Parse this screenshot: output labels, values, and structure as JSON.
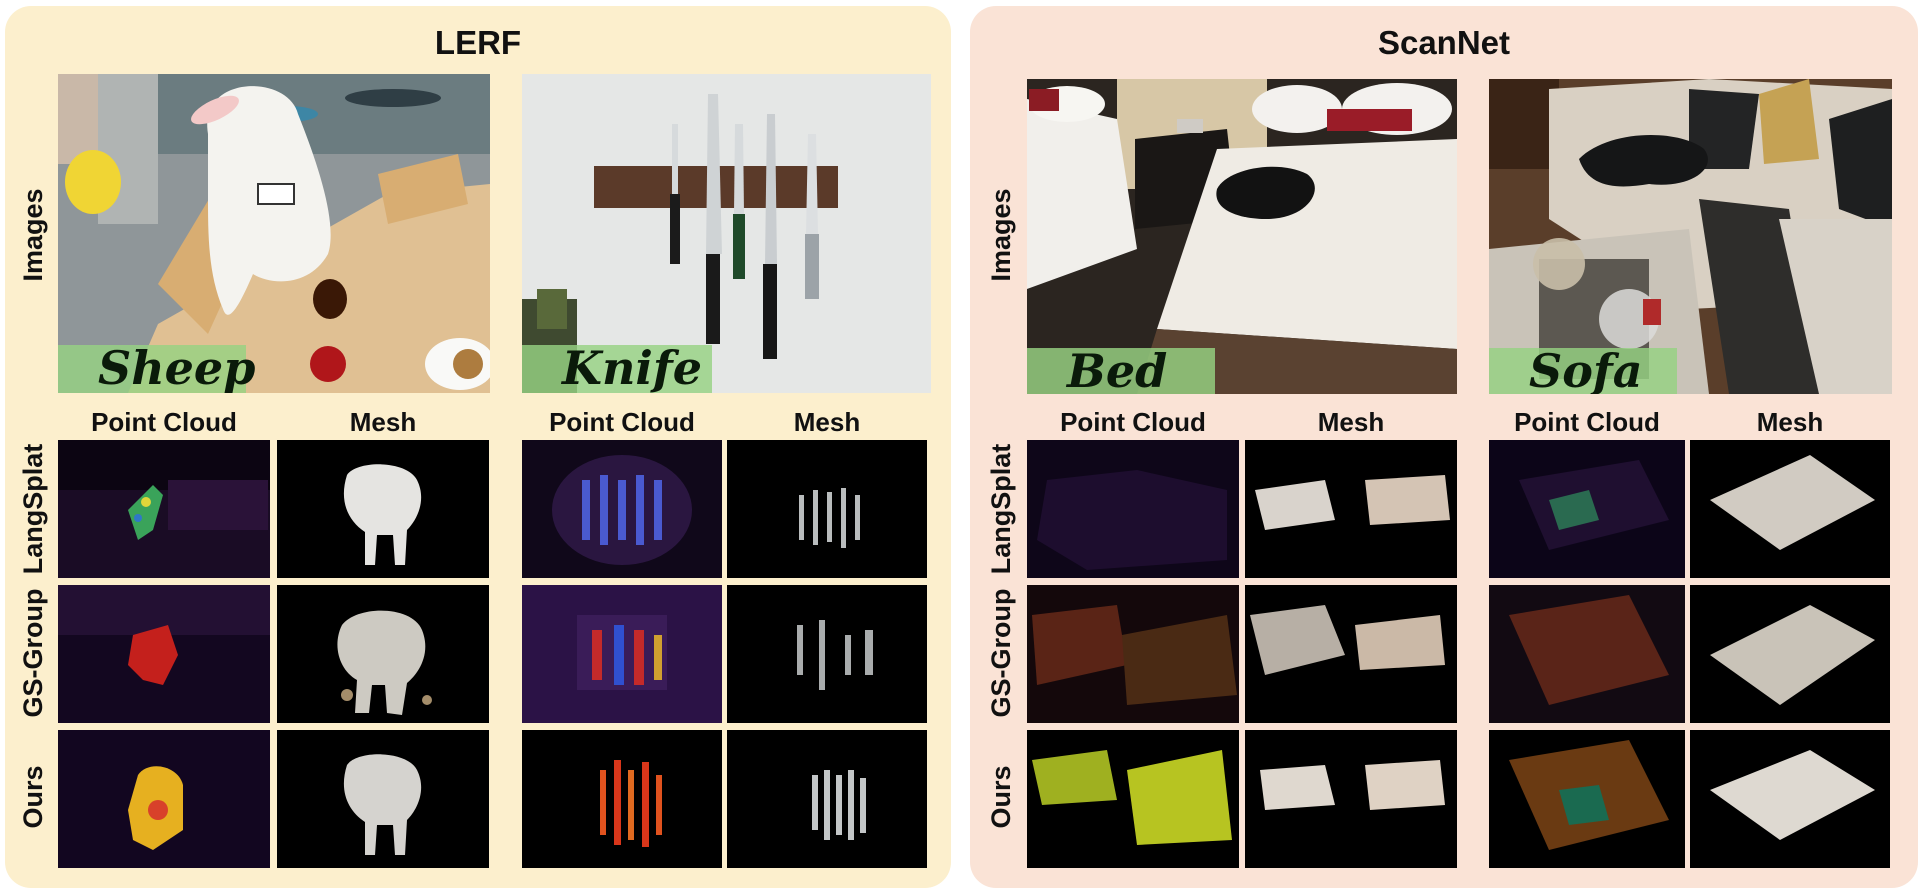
{
  "panels": {
    "lerf": {
      "title": "LERF",
      "scenes": [
        {
          "label": "Sheep"
        },
        {
          "label": "Knife"
        }
      ]
    },
    "scannet": {
      "title": "ScanNet",
      "scenes": [
        {
          "label": "Bed"
        },
        {
          "label": "Sofa"
        }
      ]
    }
  },
  "row_labels": {
    "images": "Images",
    "langsplat": "LangSplat",
    "gsgroup": "GS-Group",
    "ours": "Ours"
  },
  "column_labels": {
    "point_cloud": "Point Cloud",
    "mesh": "Mesh"
  }
}
